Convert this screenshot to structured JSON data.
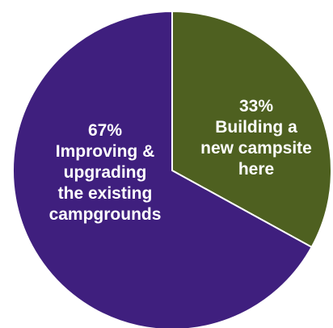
{
  "chart_data": {
    "type": "pie",
    "slices": [
      {
        "value": 33,
        "percent_label": "33%",
        "label_lines": [
          "Building a",
          "new campsite",
          "here"
        ],
        "color": "#4e6020"
      },
      {
        "value": 67,
        "percent_label": "67%",
        "label_lines": [
          "Improving &",
          "upgrading",
          "the existing",
          "campgrounds"
        ],
        "color": "#3f1f7e"
      }
    ],
    "start_angle_deg": 0,
    "direction": "clockwise",
    "slice_border_color": "#ffffff",
    "title": "",
    "legend": "none"
  }
}
